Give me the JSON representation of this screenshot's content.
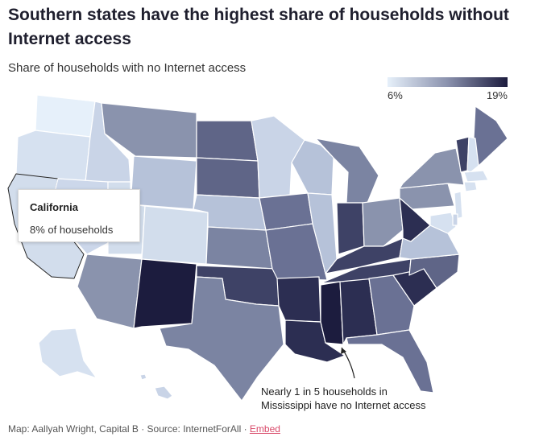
{
  "title": "Southern states have the highest share of households without Internet access",
  "subtitle": "Share of households with no Internet access",
  "legend": {
    "min_label": "6%",
    "max_label": "19%",
    "min_color": "#e6f0fa",
    "max_color": "#1c1c3e"
  },
  "tooltip": {
    "state": "California",
    "value": "8% of households"
  },
  "annotation": {
    "line1": "Nearly 1 in 5 households in",
    "line2": "Mississippi have no Internet access"
  },
  "footer": {
    "credit": "Map: Aallyah Wright, Capital B · Source: InternetForAll · ",
    "embed_label": "Embed"
  },
  "colors": {
    "lightest": "#dde8f5",
    "light": "#c8d3e6",
    "mid": "#8a93ad",
    "dark": "#5b6185",
    "darker": "#3e4266",
    "darkest": "#1c1c3e"
  }
}
